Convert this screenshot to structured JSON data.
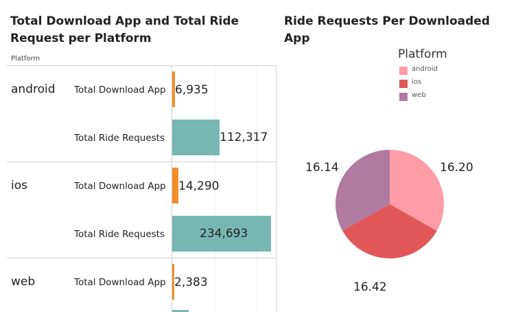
{
  "bar_chart": {
    "title": "Total Download App and Total Ride Request per Platform",
    "column_header": "Platform",
    "colors": {
      "download": "#f28e2b",
      "ride": "#76b7b2"
    }
  },
  "pie_chart": {
    "title": "Ride Requests Per Downloaded App",
    "legend_title": "Platform",
    "legend_position": "top-right"
  },
  "chart_data": [
    {
      "type": "bar",
      "orientation": "horizontal",
      "title": "Total Download App and Total Ride Request per Platform",
      "categories": [
        "android",
        "ios",
        "web"
      ],
      "measures": [
        "Total Download App",
        "Total Ride Requests"
      ],
      "series": [
        {
          "name": "Total Download App",
          "values": [
            6935,
            14290,
            2383
          ],
          "labels": [
            "6,935",
            "14,290",
            "2,383"
          ]
        },
        {
          "name": "Total Ride Requests",
          "values": [
            112317,
            234693,
            null
          ],
          "labels": [
            "112,317",
            "234,693",
            ""
          ]
        }
      ],
      "xlim": [
        0,
        234693
      ],
      "grid": true
    },
    {
      "type": "pie",
      "title": "Ride Requests Per Downloaded App",
      "legend_title": "Platform",
      "legend": [
        "android",
        "ios",
        "web"
      ],
      "categories": [
        "android",
        "ios",
        "web"
      ],
      "values": [
        16.2,
        16.42,
        16.14
      ],
      "labels": [
        "16.20",
        "16.42",
        "16.14"
      ],
      "colors": [
        "#ff9da7",
        "#e15759",
        "#b07aa1"
      ]
    }
  ]
}
